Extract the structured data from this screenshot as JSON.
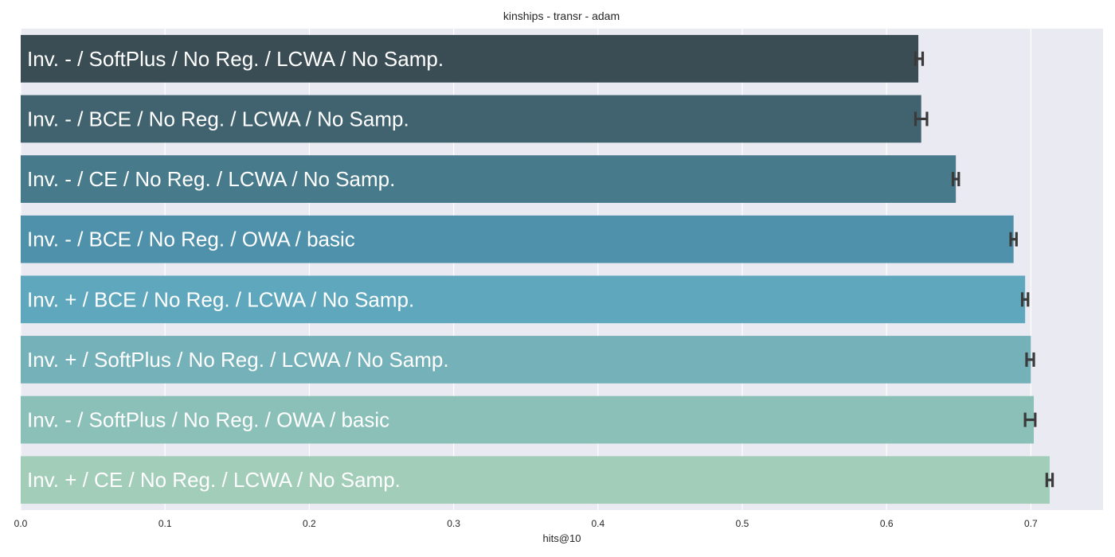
{
  "chart_data": {
    "type": "bar",
    "orientation": "horizontal",
    "title": "kinships - transr - adam",
    "xlabel": "hits@10",
    "ylabel": "",
    "xlim": [
      0.0,
      0.75
    ],
    "xticks": [
      "0.0",
      "0.1",
      "0.2",
      "0.3",
      "0.4",
      "0.5",
      "0.6",
      "0.7"
    ],
    "grid": true,
    "categories": [
      "Inv. - / SoftPlus / No Reg. / LCWA / No Samp.",
      "Inv. - / BCE / No Reg. / LCWA / No Samp.",
      "Inv. - / CE / No Reg. / LCWA / No Samp.",
      "Inv. - / BCE / No Reg. / OWA / basic",
      "Inv. + / BCE / No Reg. / LCWA / No Samp.",
      "Inv. + / SoftPlus / No Reg. / LCWA / No Samp.",
      "Inv. - / SoftPlus / No Reg. / OWA / basic",
      "Inv. + / CE / No Reg. / LCWA / No Samp."
    ],
    "values": [
      0.622,
      0.624,
      0.648,
      0.688,
      0.696,
      0.7,
      0.702,
      0.713
    ],
    "error_low": [
      0.62,
      0.62,
      0.646,
      0.686,
      0.694,
      0.697,
      0.696,
      0.711
    ],
    "error_high": [
      0.625,
      0.628,
      0.65,
      0.69,
      0.698,
      0.702,
      0.703,
      0.715
    ],
    "colors": [
      "#3a4c54",
      "#41636f",
      "#477a8a",
      "#4f91ab",
      "#5fa7bd",
      "#75b1b9",
      "#8ac0b8",
      "#a2cdb9"
    ],
    "background": "#eaeaf2",
    "errorbar_color": "#3a3a3a"
  }
}
